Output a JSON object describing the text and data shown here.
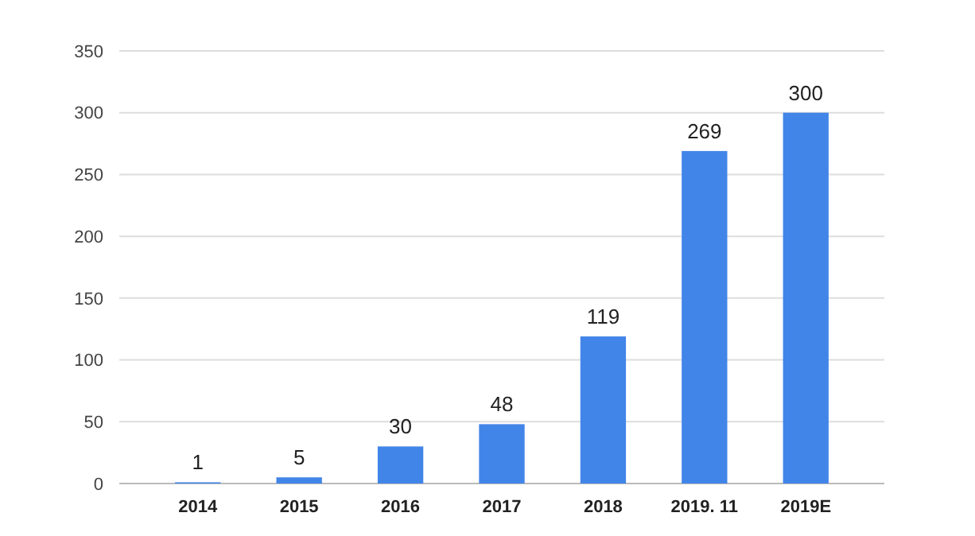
{
  "chart_data": {
    "type": "bar",
    "categories": [
      "2014",
      "2015",
      "2016",
      "2017",
      "2018",
      "2019. 11",
      "2019E"
    ],
    "values": [
      1,
      5,
      30,
      48,
      119,
      269,
      300
    ],
    "color": "#4285e8",
    "ylim": [
      0,
      350
    ],
    "yticks": [
      0,
      50,
      100,
      150,
      200,
      250,
      300,
      350
    ],
    "grid": "y",
    "data_labels": true
  }
}
